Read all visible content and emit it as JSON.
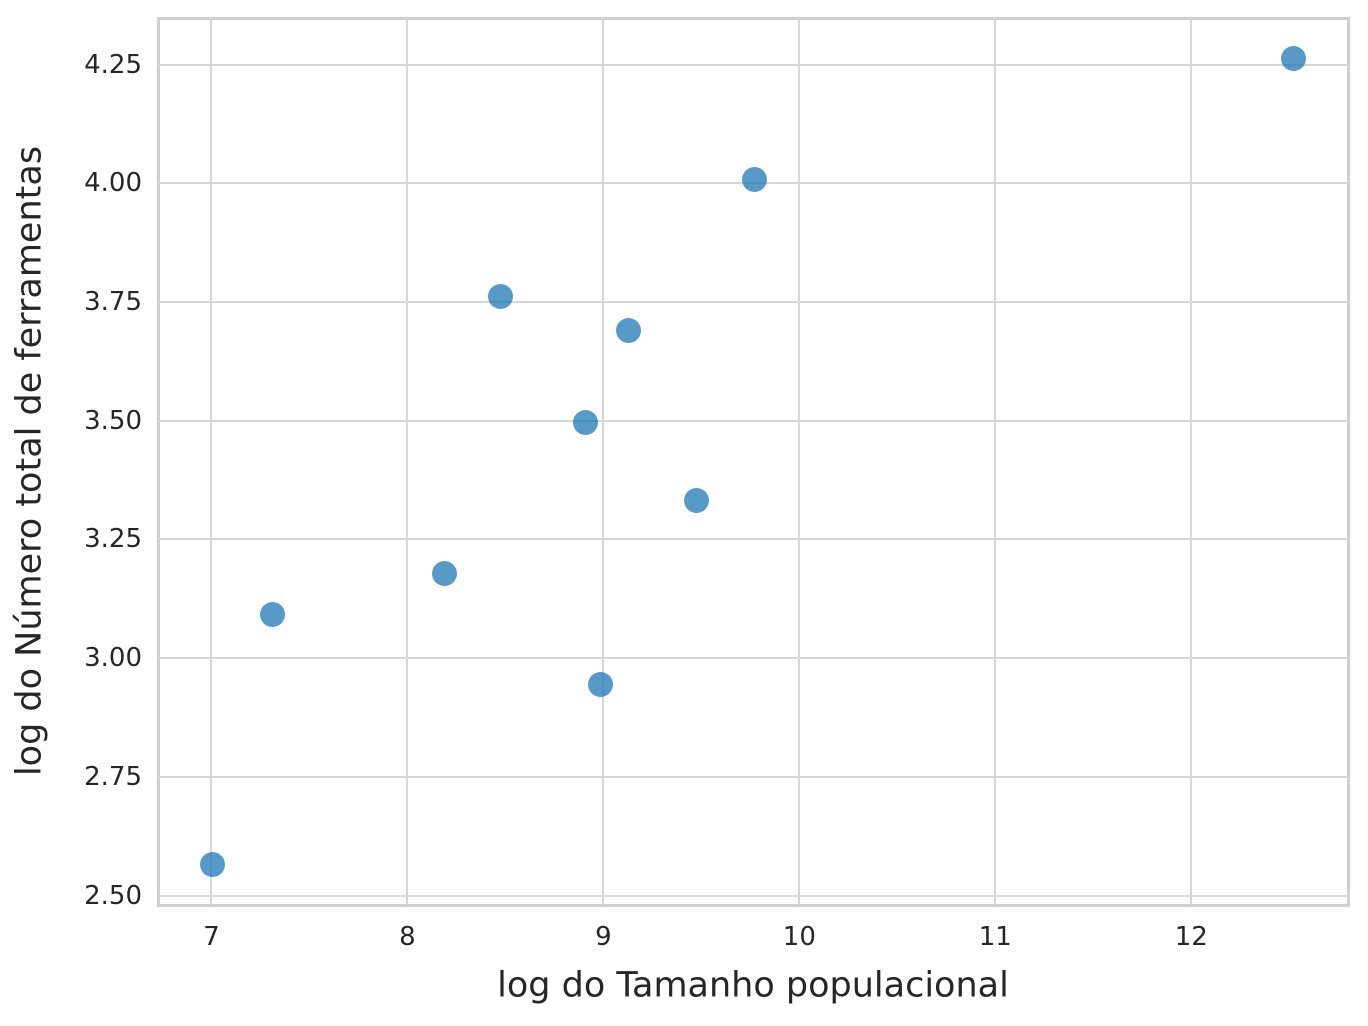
{
  "chart_data": {
    "type": "scatter",
    "title": "",
    "xlabel": "log do Tamanho populacional",
    "ylabel": "log do Número total de ferramentas",
    "x": [
      7.003,
      7.313,
      8.189,
      8.474,
      8.909,
      8.987,
      9.127,
      9.473,
      9.77,
      12.524
    ],
    "y": [
      2.565,
      3.091,
      3.178,
      3.761,
      3.497,
      2.944,
      3.689,
      3.332,
      4.007,
      4.263
    ],
    "xlim": [
      6.727,
      12.8
    ],
    "ylim": [
      2.48,
      4.348
    ],
    "x_tick_values": [
      7,
      8,
      9,
      10,
      11,
      12
    ],
    "x_tick_labels": [
      "7",
      "8",
      "9",
      "10",
      "11",
      "12"
    ],
    "y_tick_values": [
      2.5,
      2.75,
      3.0,
      3.25,
      3.5,
      3.75,
      4.0,
      4.25
    ],
    "y_tick_labels": [
      "2.50",
      "2.75",
      "3.00",
      "3.25",
      "3.50",
      "3.75",
      "4.00",
      "4.25"
    ],
    "grid": true,
    "legend": false,
    "marker_color": "#1f77b4",
    "marker_alpha": 0.75,
    "marker_diameter_px": 25,
    "grid_color": "#d7d7d7",
    "axes_edge_color": "#cfcfcf",
    "text_color": "#262626",
    "background_color": "#ffffff"
  }
}
